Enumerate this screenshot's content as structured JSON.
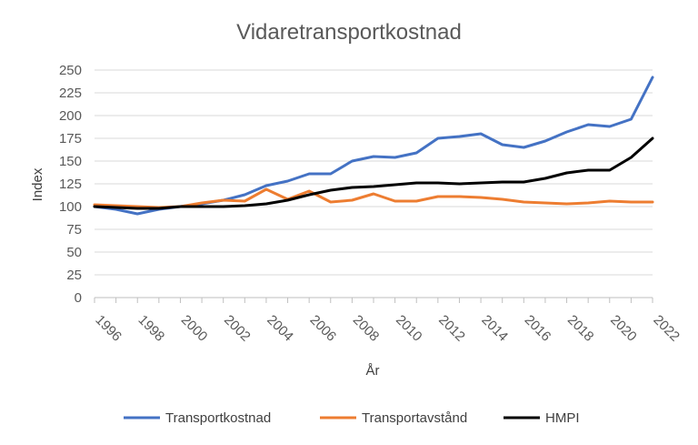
{
  "chart_data": {
    "type": "line",
    "title": "Vidaretransportkostnad",
    "xlabel": "År",
    "ylabel": "Index",
    "ylim": [
      0,
      250
    ],
    "y_ticks": [
      "0",
      "25",
      "50",
      "75",
      "100",
      "125",
      "150",
      "175",
      "200",
      "225",
      "250"
    ],
    "x_tick_labels": [
      "1996",
      "1998",
      "2000",
      "2002",
      "2004",
      "2006",
      "2008",
      "2010",
      "2012",
      "2014",
      "2016",
      "2018",
      "2020",
      "2022"
    ],
    "x": [
      1996,
      1997,
      1998,
      1999,
      2000,
      2001,
      2002,
      2003,
      2004,
      2005,
      2006,
      2007,
      2008,
      2009,
      2010,
      2011,
      2012,
      2013,
      2014,
      2015,
      2016,
      2017,
      2018,
      2019,
      2020,
      2021,
      2022
    ],
    "grid": true,
    "legend_position": "bottom",
    "series": [
      {
        "name": "Transportkostnad",
        "color": "#4472c4",
        "values": [
          100,
          97,
          92,
          97,
          100,
          103,
          107,
          113,
          123,
          128,
          136,
          136,
          150,
          155,
          154,
          159,
          175,
          177,
          180,
          168,
          165,
          172,
          182,
          190,
          188,
          196,
          242
        ]
      },
      {
        "name": "Transportavstånd",
        "color": "#ed7d31",
        "values": [
          102,
          101,
          100,
          99,
          100,
          104,
          107,
          106,
          119,
          108,
          117,
          105,
          107,
          114,
          106,
          106,
          111,
          111,
          110,
          108,
          105,
          104,
          103,
          104,
          106,
          105,
          105
        ]
      },
      {
        "name": "HMPI",
        "color": "#000000",
        "values": [
          100,
          99,
          98,
          98,
          100,
          100,
          100,
          101,
          103,
          107,
          113,
          118,
          121,
          122,
          124,
          126,
          126,
          125,
          126,
          127,
          127,
          131,
          137,
          140,
          140,
          154,
          175
        ]
      }
    ]
  }
}
